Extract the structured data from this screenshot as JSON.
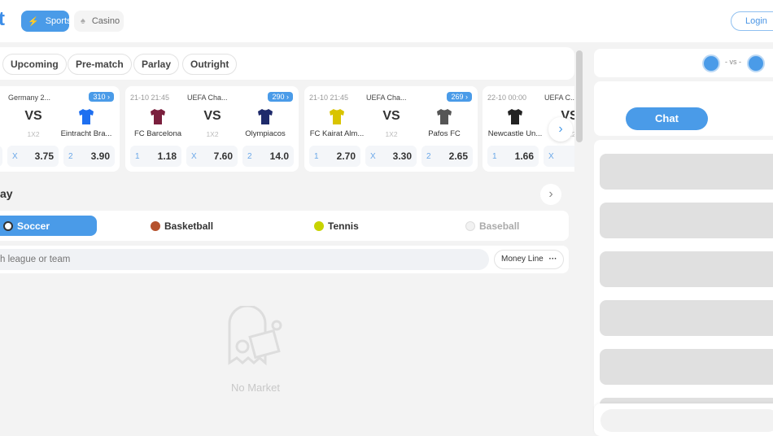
{
  "header": {
    "logo": "t",
    "sports": "Sports",
    "casino": "Casino",
    "login": "Login"
  },
  "filters": [
    "Upcoming",
    "Pre-match",
    "Parlay",
    "Outright"
  ],
  "cards": [
    {
      "time": "",
      "league": "Germany 2...",
      "count": "310",
      "home": "...",
      "away": "Eintracht Bra...",
      "market": "1X2",
      "odds": [
        {
          "l": "1",
          "v": ""
        },
        {
          "l": "X",
          "v": "3.75"
        },
        {
          "l": "2",
          "v": "3.90"
        }
      ],
      "homeColor": "#1d4ed8",
      "awayColor": "#1e6ff0"
    },
    {
      "time": "21-10 21:45",
      "league": "UEFA Cha...",
      "count": "290",
      "home": "FC Barcelona",
      "away": "Olympiacos",
      "market": "1X2",
      "odds": [
        {
          "l": "1",
          "v": "1.18"
        },
        {
          "l": "X",
          "v": "7.60"
        },
        {
          "l": "2",
          "v": "14.0"
        }
      ],
      "homeColor": "#7a1f3d",
      "awayColor": "#1e2a6b"
    },
    {
      "time": "21-10 21:45",
      "league": "UEFA Cha...",
      "count": "269",
      "home": "FC Kairat Alm...",
      "away": "Pafos FC",
      "market": "1X2",
      "odds": [
        {
          "l": "1",
          "v": "2.70"
        },
        {
          "l": "X",
          "v": "3.30"
        },
        {
          "l": "2",
          "v": "2.65"
        }
      ],
      "homeColor": "#d9c400",
      "awayColor": "#555555"
    },
    {
      "time": "22-10 00:00",
      "league": "UEFA C...",
      "count": "",
      "home": "Newcastle Un...",
      "away": "",
      "market": "1X2",
      "odds": [
        {
          "l": "1",
          "v": "1.66"
        },
        {
          "l": "X",
          "v": ""
        }
      ],
      "homeColor": "#222222"
    }
  ],
  "section": {
    "title": "ay"
  },
  "sports": [
    {
      "label": "Soccer",
      "active": true
    },
    {
      "label": "Basketball"
    },
    {
      "label": "Tennis"
    },
    {
      "label": "Baseball",
      "disabled": true
    }
  ],
  "search": {
    "placeholder": "h league or team",
    "market": "Money Line"
  },
  "empty": {
    "text": "No Market"
  },
  "right": {
    "vs": "- vs -",
    "chat": "Chat"
  },
  "colors": {
    "accent": "#4a9be8"
  }
}
